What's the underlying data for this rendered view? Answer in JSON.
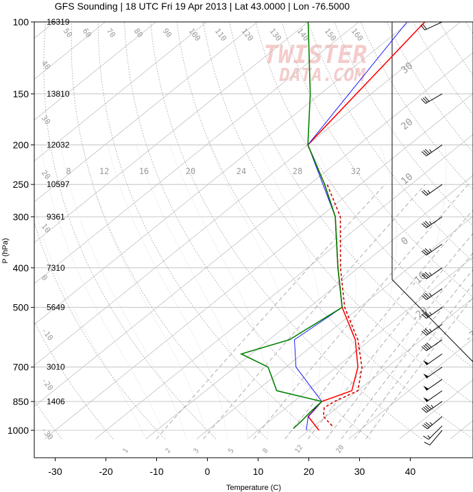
{
  "title": "GFS Sounding | 18 UTC Fri 19 Apr 2013 | Lat 43.0000 | Lon -76.5000",
  "watermark": [
    "TWISTER",
    "DATA.COM"
  ],
  "chart_data": {
    "type": "line",
    "title": "GFS Sounding | 18 UTC Fri 19 Apr 2013 | Lat 43.0000 | Lon -76.5000",
    "xlabel": "Temperature (C)",
    "ylabel": "P (hPa)",
    "xlim": [
      -34,
      51
    ],
    "ylim": [
      1050,
      100
    ],
    "y_scale": "log",
    "x_ticks": [
      -30,
      -20,
      -10,
      0,
      10,
      20,
      30,
      40
    ],
    "y_ticks": [
      100,
      150,
      200,
      250,
      300,
      400,
      500,
      700,
      850,
      1000
    ],
    "heights_m": [
      {
        "p": 100,
        "h": "16319"
      },
      {
        "p": 150,
        "h": "13810"
      },
      {
        "p": 200,
        "h": "12032"
      },
      {
        "p": 250,
        "h": "10597"
      },
      {
        "p": 300,
        "h": "9361"
      },
      {
        "p": 400,
        "h": "7310"
      },
      {
        "p": 500,
        "h": "5649"
      },
      {
        "p": 700,
        "h": "3010"
      },
      {
        "p": 850,
        "h": "1406"
      }
    ],
    "mixing_ratio_labels": [
      "8",
      "12",
      "16",
      "20",
      "24",
      "28",
      "32"
    ],
    "isotherm_labels": [
      "40",
      "30",
      "20",
      "10",
      "0",
      "-10",
      "-20",
      "-30",
      "-40",
      "-50",
      "-60"
    ],
    "isotherm_top_labels": [
      "60",
      "70",
      "80",
      "90",
      "100",
      "110",
      "120",
      "130",
      "140",
      "150",
      "160"
    ],
    "dry_adiabat_labels": [
      "1",
      "2",
      "3",
      "5",
      "8",
      "12",
      "20"
    ],
    "series": [
      {
        "color": "#ff0000",
        "points": [
          {
            "p": 1000,
            "t": 22.0
          },
          {
            "p": 925,
            "t": 16.5
          },
          {
            "p": 850,
            "t": 15.5
          },
          {
            "p": 800,
            "t": 18.8
          },
          {
            "p": 700,
            "t": 14.2
          },
          {
            "p": 600,
            "t": 7.0
          },
          {
            "p": 500,
            "t": -3.5
          },
          {
            "p": 400,
            "t": -14.0
          },
          {
            "p": 300,
            "t": -27.0
          },
          {
            "p": 250,
            "t": -37.0
          },
          {
            "p": 200,
            "t": -50.0
          },
          {
            "p": 100,
            "t": -57.0
          }
        ]
      },
      {
        "color": "#cc0000",
        "dashed": true,
        "points": [
          {
            "p": 975,
            "t": 23.5
          },
          {
            "p": 925,
            "t": 19.5
          },
          {
            "p": 880,
            "t": 17.5
          },
          {
            "p": 850,
            "t": 18.0
          },
          {
            "p": 800,
            "t": 20.0
          },
          {
            "p": 700,
            "t": 15.0
          },
          {
            "p": 600,
            "t": 7.5
          },
          {
            "p": 500,
            "t": -3.0
          },
          {
            "p": 400,
            "t": -13.5
          },
          {
            "p": 300,
            "t": -26.0
          },
          {
            "p": 250,
            "t": -36.5
          }
        ]
      },
      {
        "color": "#0000ff",
        "points": [
          {
            "p": 1000,
            "t": 19.5
          },
          {
            "p": 925,
            "t": 16.5
          },
          {
            "p": 850,
            "t": 15.5
          },
          {
            "p": 700,
            "t": 2.0
          },
          {
            "p": 600,
            "t": -5.0
          },
          {
            "p": 500,
            "t": -3.5
          },
          {
            "p": 400,
            "t": -14.0
          },
          {
            "p": 300,
            "t": -27.0
          },
          {
            "p": 200,
            "t": -50.0
          },
          {
            "p": 100,
            "t": -60.5
          }
        ]
      },
      {
        "color": "#008000",
        "points": [
          {
            "p": 990,
            "t": 16.5
          },
          {
            "p": 950,
            "t": 16.3
          },
          {
            "p": 900,
            "t": 15.8
          },
          {
            "p": 850,
            "t": 15.5
          },
          {
            "p": 800,
            "t": 4.0
          },
          {
            "p": 700,
            "t": -3.5
          },
          {
            "p": 650,
            "t": -12.0
          },
          {
            "p": 600,
            "t": -6.0
          },
          {
            "p": 500,
            "t": -3.5
          },
          {
            "p": 400,
            "t": -14.0
          },
          {
            "p": 300,
            "t": -27.0
          },
          {
            "p": 250,
            "t": -37.0
          },
          {
            "p": 200,
            "t": -50.0
          },
          {
            "p": 150,
            "t": -62.0
          },
          {
            "p": 100,
            "t": -80.0
          }
        ]
      }
    ],
    "wind_barbs": [
      {
        "p": 1000,
        "dir": 220,
        "spd_kt": 10
      },
      {
        "p": 975,
        "dir": 225,
        "spd_kt": 15
      },
      {
        "p": 925,
        "dir": 230,
        "spd_kt": 35
      },
      {
        "p": 850,
        "dir": 235,
        "spd_kt": 45
      },
      {
        "p": 800,
        "dir": 235,
        "spd_kt": 50
      },
      {
        "p": 750,
        "dir": 235,
        "spd_kt": 50
      },
      {
        "p": 700,
        "dir": 235,
        "spd_kt": 50
      },
      {
        "p": 650,
        "dir": 235,
        "spd_kt": 50
      },
      {
        "p": 600,
        "dir": 235,
        "spd_kt": 40
      },
      {
        "p": 550,
        "dir": 235,
        "spd_kt": 35
      },
      {
        "p": 500,
        "dir": 235,
        "spd_kt": 35
      },
      {
        "p": 450,
        "dir": 235,
        "spd_kt": 35
      },
      {
        "p": 400,
        "dir": 235,
        "spd_kt": 35
      },
      {
        "p": 350,
        "dir": 235,
        "spd_kt": 35
      },
      {
        "p": 300,
        "dir": 235,
        "spd_kt": 35
      },
      {
        "p": 250,
        "dir": 235,
        "spd_kt": 25
      },
      {
        "p": 200,
        "dir": 235,
        "spd_kt": 35
      },
      {
        "p": 150,
        "dir": 240,
        "spd_kt": 30
      },
      {
        "p": 100,
        "dir": 245,
        "spd_kt": 20
      }
    ],
    "hodograph_boundary": true,
    "grid": true
  }
}
